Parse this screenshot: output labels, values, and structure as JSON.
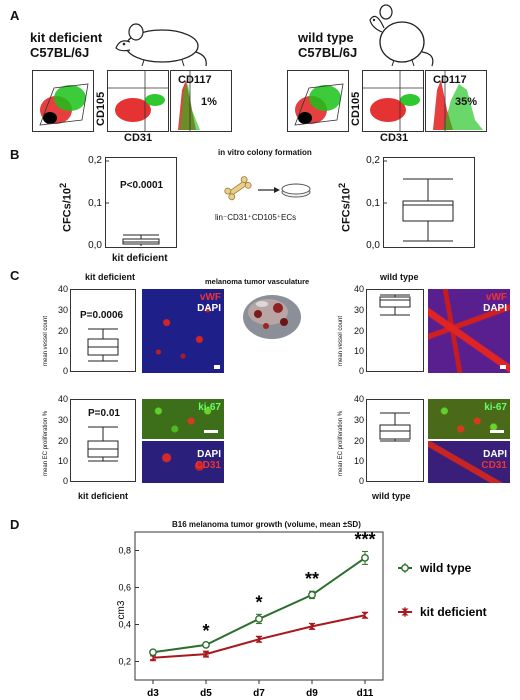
{
  "panel_A": {
    "letter": "A",
    "left_strain": [
      "kit deficient",
      "C57BL/6J"
    ],
    "right_strain": [
      "wild type",
      "C57BL/6J"
    ],
    "axis_cd105": "CD105",
    "axis_cd31": "CD31",
    "hist_label": "CD117",
    "left_pct": "1%",
    "right_pct": "35%"
  },
  "panel_B": {
    "letter": "B",
    "ylabel": "CFCs/10",
    "ylabel_exp": "2",
    "center_title": "in vitro colony formation",
    "center_caption": "lin⁻CD31⁺CD105⁺ECs",
    "left_xlabel": "kit deficient",
    "pvalue": "P<0.0001",
    "yticks": [
      "0,2",
      "0,1",
      "0,0"
    ]
  },
  "panel_C": {
    "letter": "C",
    "left_title": "kit deficient",
    "right_title": "wild type",
    "center_title": "melanoma tumor vasculature",
    "vessel_ylabel": "mean vessel count",
    "prolif_ylabel": "mean EC proliferation %",
    "p_vessel": "P=0.0006",
    "p_prolif": "P=0.01",
    "yticks": [
      "40",
      "30",
      "20",
      "10",
      "0"
    ],
    "left_xlabel": "kit deficient",
    "right_xlabel": "wild type",
    "stain_vwf": "vWF",
    "stain_dapi": "DAPI",
    "stain_ki67": "ki-67",
    "stain_cd31": "CD31"
  },
  "panel_D": {
    "letter": "D",
    "chart_data": {
      "type": "line",
      "title": "B16 melanoma tumor growth (volume, mean ±SD)",
      "ylabel": "cm3",
      "categories": [
        "d3",
        "d5",
        "d7",
        "d9",
        "d11"
      ],
      "ylim": [
        0.1,
        0.9
      ],
      "yticks": [
        "0,2",
        "0,4",
        "0,6",
        "0,8"
      ],
      "series": [
        {
          "name": "wild type",
          "color": "#2d6e2d",
          "marker": "circle",
          "values": [
            0.25,
            0.29,
            0.43,
            0.56,
            0.76
          ],
          "sd": [
            0.01,
            0.01,
            0.025,
            0.02,
            0.035
          ]
        },
        {
          "name": "kit deficient",
          "color": "#a8181c",
          "marker": "bowtie",
          "values": [
            0.22,
            0.24,
            0.32,
            0.39,
            0.45
          ],
          "sd": [
            0.01,
            0.01,
            0.015,
            0.015,
            0.015
          ]
        }
      ],
      "significance": [
        "",
        "*",
        "*",
        "**",
        "***"
      ]
    }
  }
}
